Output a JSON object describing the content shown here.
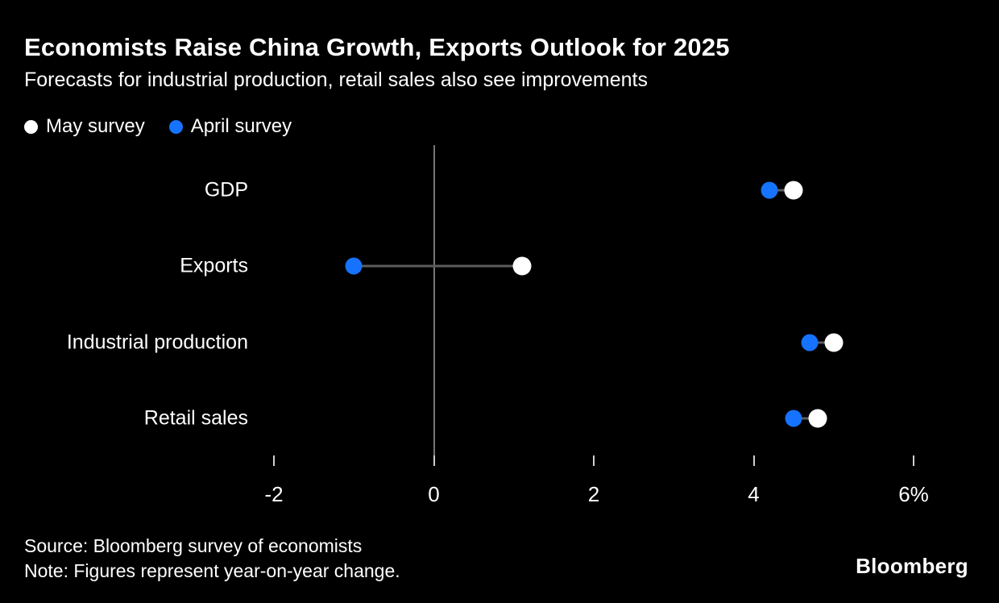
{
  "header": {
    "title": "Economists Raise China Growth, Exports Outlook for 2025",
    "subtitle": "Forecasts for industrial production, retail sales also see improvements"
  },
  "legend": [
    {
      "label": "May survey",
      "color": "#ffffff"
    },
    {
      "label": "April survey",
      "color": "#1673ff"
    }
  ],
  "chart_data": {
    "type": "scatter",
    "subtype": "dumbbell-dot-plot",
    "categories": [
      "GDP",
      "Exports",
      "Industrial production",
      "Retail sales"
    ],
    "series": [
      {
        "name": "May survey",
        "color": "#ffffff",
        "values": [
          4.5,
          1.1,
          5.0,
          4.8
        ]
      },
      {
        "name": "April survey",
        "color": "#1673ff",
        "values": [
          4.2,
          -1.0,
          4.7,
          4.5
        ]
      }
    ],
    "x_ticks": [
      -2,
      0,
      2,
      4,
      6
    ],
    "x_tick_labels": [
      "-2",
      "0",
      "2",
      "4",
      "6%"
    ],
    "xlim": [
      -2.5,
      7
    ],
    "zero_line": true,
    "grid": false,
    "legend_position": "top-left",
    "title": "Economists Raise China Growth, Exports Outlook for 2025",
    "xlabel": "",
    "ylabel": "",
    "units": "% year-on-year",
    "colors": {
      "background": "#000000",
      "text": "#ffffff",
      "baseline": "#757575",
      "connector": "#5c5c5c",
      "tick": "#cfcfcf"
    }
  },
  "footer": {
    "source": "Source: Bloomberg survey of economists",
    "note": "Note: Figures represent year-on-year change.",
    "logo": "Bloomberg"
  }
}
